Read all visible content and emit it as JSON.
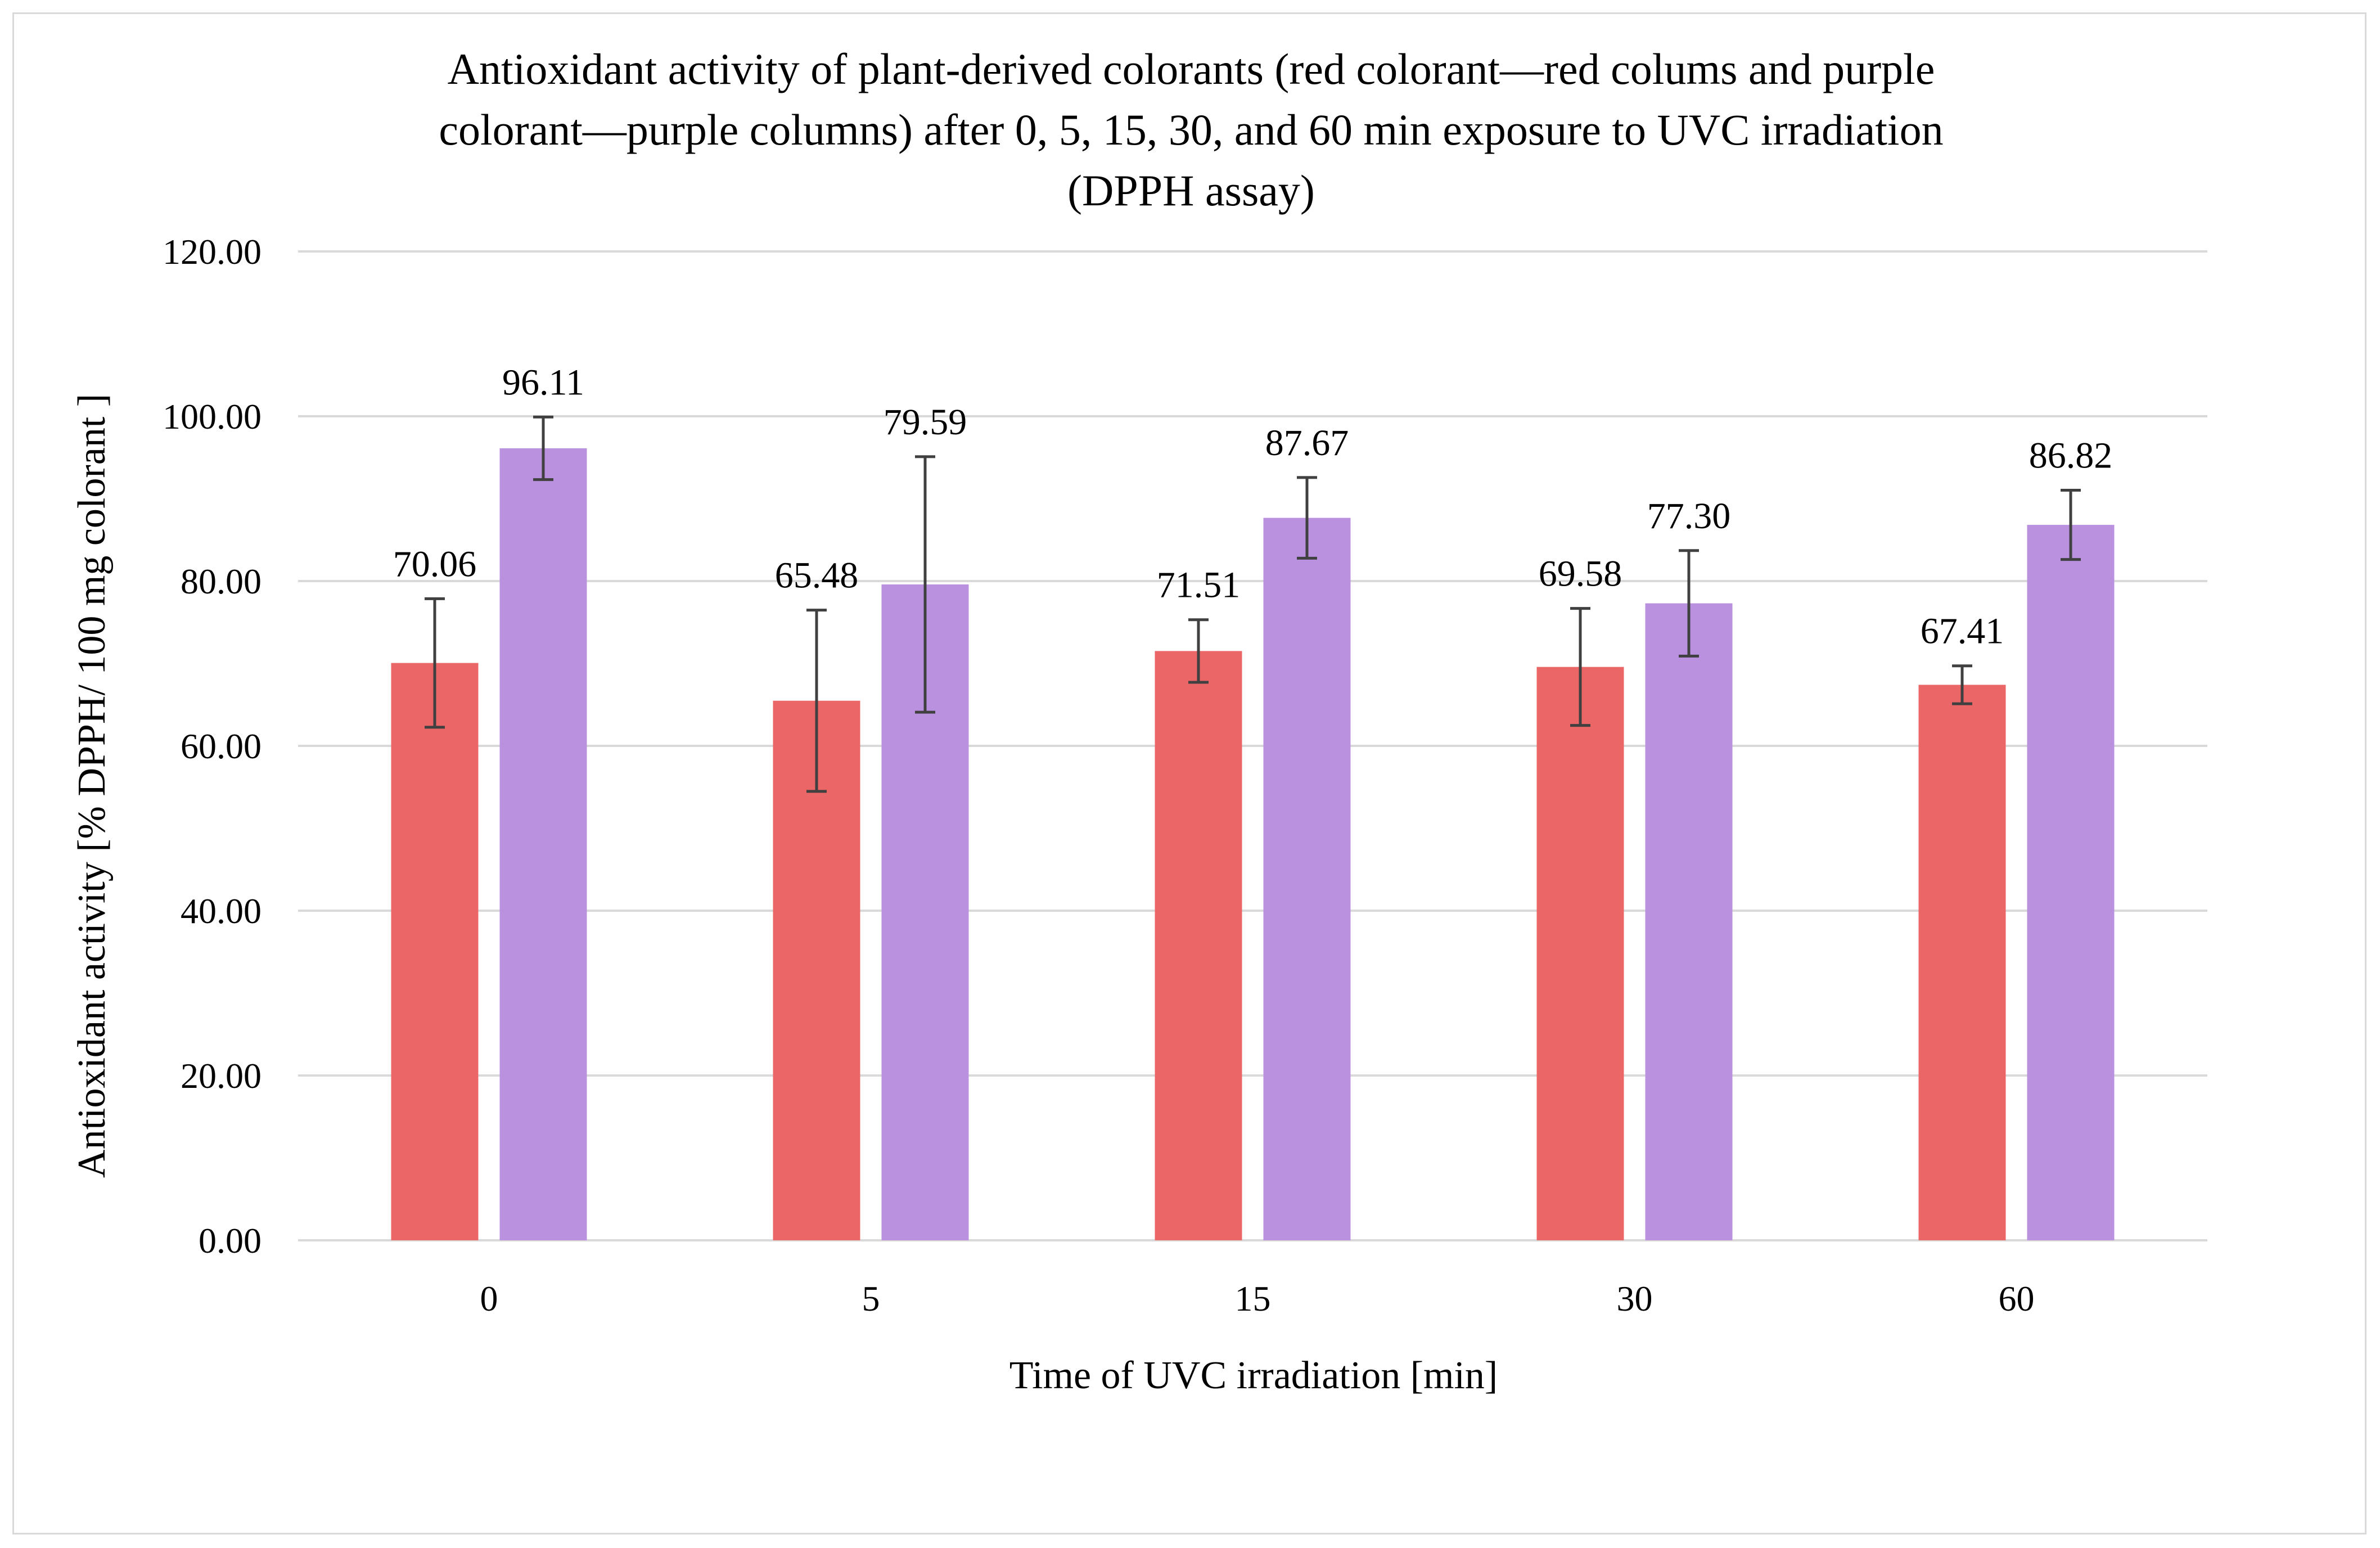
{
  "chart_data": {
    "type": "bar",
    "title_lines": [
      "Antioxidant activity of plant-derived colorants (red colorant—red colums and purple",
      "colorant—purple columns) after 0, 5, 15, 30, and 60 min exposure to UVC irradiation",
      "(DPPH assay)"
    ],
    "xlabel": "Time of UVC irradiation [min]",
    "ylabel": "Antioxidant activity [% DPPH/ 100 mg colorant ]",
    "categories": [
      "0",
      "5",
      "15",
      "30",
      "60"
    ],
    "ylim": [
      0,
      120
    ],
    "yticks": [
      0,
      20,
      40,
      60,
      80,
      100,
      120
    ],
    "ytick_labels": [
      "0.00",
      "20.00",
      "40.00",
      "60.00",
      "80.00",
      "100.00",
      "120.00"
    ],
    "grid": true,
    "legend": "none",
    "series": [
      {
        "color": "#eb6767",
        "values": [
          70.06,
          65.48,
          71.51,
          69.58,
          67.41
        ],
        "labels": [
          "70.06",
          "65.48",
          "71.51",
          "69.58",
          "67.41"
        ],
        "errors": [
          7.8,
          11.0,
          3.8,
          7.1,
          2.3
        ]
      },
      {
        "color": "#ba91df",
        "values": [
          96.11,
          79.59,
          87.67,
          77.3,
          86.82
        ],
        "labels": [
          "96.11",
          "79.59",
          "87.67",
          "77.30",
          "86.82"
        ],
        "errors": [
          3.8,
          15.5,
          4.9,
          6.4,
          4.2
        ]
      }
    ]
  }
}
